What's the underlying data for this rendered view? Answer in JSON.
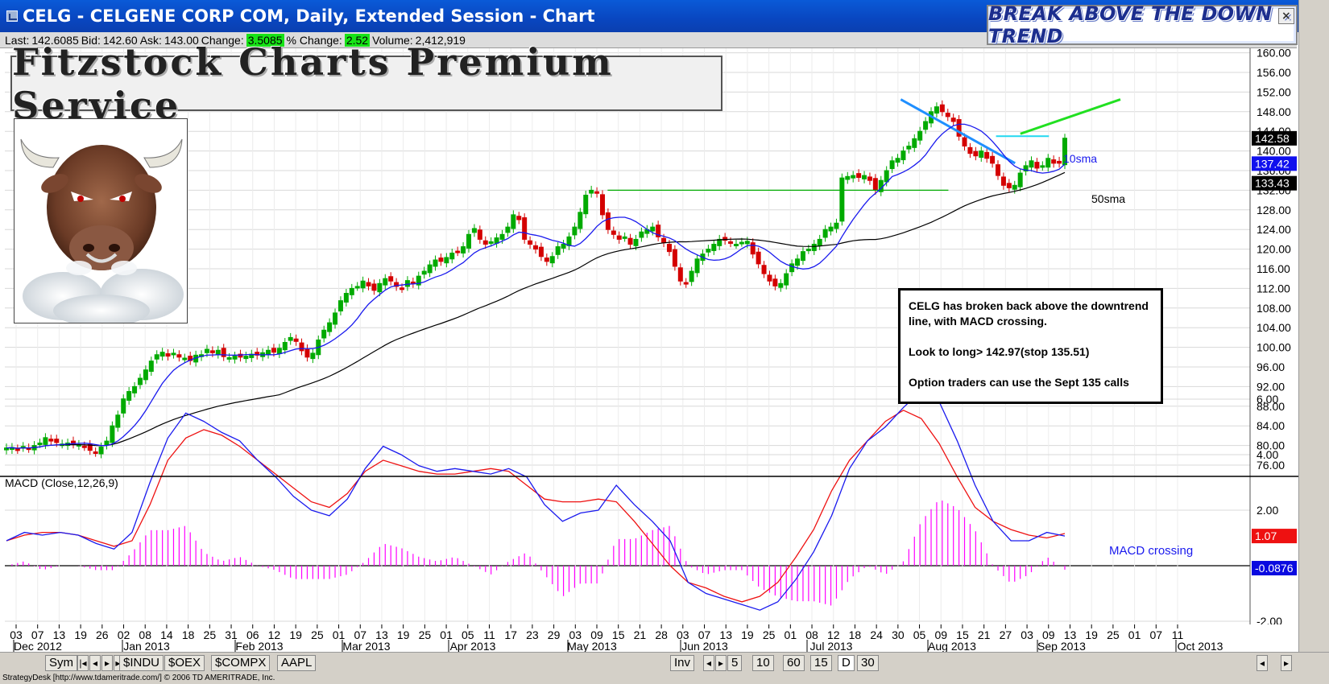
{
  "window": {
    "title": "CELG - CELGENE CORP COM, Daily, Extended Session - Chart",
    "banner_text": "BREAK ABOVE THE DOWN TREND",
    "banner_close": "×"
  },
  "quote": {
    "last_label": "Last:",
    "last": "142.6085",
    "bid_label": "Bid:",
    "bid": "142.60",
    "ask_label": "Ask:",
    "ask": "143.00",
    "change_label": "Change:",
    "change": "3.5085",
    "pct_label": "% Change:",
    "pct": "2.52",
    "volume_label": "Volume:",
    "volume": "2,412,919"
  },
  "logo_text": "Fitzstock Charts Premium Service",
  "annotation": {
    "line1": "CELG has broken back above the downtrend line, with MACD crossing.",
    "line2": "Look to long> 142.97(stop 135.51)",
    "line3": "Option traders can use the Sept 135 calls"
  },
  "labels": {
    "sma10": "10sma",
    "sma50": "50sma",
    "macd_title": "MACD (Close,12,26,9)",
    "macd_crossing": "MACD crossing"
  },
  "price_tags": [
    {
      "value": "142.58",
      "bg": "#000000",
      "fg": "#ffffff"
    },
    {
      "value": "137.42",
      "bg": "#1010ee",
      "fg": "#ffffff"
    },
    {
      "value": "133.43",
      "bg": "#000000",
      "fg": "#ffffff"
    }
  ],
  "macd_tags": [
    {
      "value": "1.07",
      "bg": "#ee1111",
      "fg": "#ffffff"
    },
    {
      "value": "-0.0876",
      "bg": "#0a0ae0",
      "fg": "#ffffff"
    }
  ],
  "bottom": {
    "sym": "Sym",
    "inv": "Inv",
    "symbols": [
      "$INDU",
      "$OEX",
      "$COMPX",
      "AAPL"
    ],
    "periods": [
      "5",
      "10",
      "60",
      "15",
      "D",
      "30"
    ],
    "arrows": [
      "|◂",
      "◂",
      "▸",
      "▸|"
    ]
  },
  "status": "StrategyDesk [http://www.tdameritrade.com/] © 2006 TD AMERITRADE, Inc.",
  "colors": {
    "candle_up": "#00aa00",
    "candle_down": "#d40000",
    "sma10": "#1a1aee",
    "sma50": "#000000",
    "downtrend": "#1f8fff",
    "breakout_target": "#21e021",
    "resistance": "#00aa00",
    "breakout_level": "#22d8f0",
    "macd_line": "#1a1aee",
    "signal_line": "#ee1111",
    "histogram": "#ff00ff"
  },
  "chart_data": [
    {
      "type": "candlestick",
      "title": "CELG - CELGENE CORP COM, Daily, Extended Session - Chart",
      "y_ticks": [
        76,
        80,
        84,
        88,
        92,
        96,
        100,
        104,
        108,
        112,
        116,
        120,
        124,
        128,
        132,
        136,
        140,
        144,
        148,
        152,
        156,
        160
      ],
      "ylim": [
        74,
        162
      ],
      "grid": true,
      "x_tick_labels": [
        "03",
        "07",
        "13",
        "19",
        "26",
        "02",
        "08",
        "14",
        "18",
        "25",
        "31",
        "06",
        "12",
        "19",
        "25",
        "01",
        "07",
        "13",
        "19",
        "25",
        "01",
        "05",
        "11",
        "17",
        "23",
        "29",
        "03",
        "09",
        "15",
        "21",
        "28",
        "03",
        "07",
        "13",
        "19",
        "25",
        "01",
        "08",
        "12",
        "18",
        "24",
        "30",
        "05",
        "09",
        "15",
        "21",
        "27",
        "03",
        "09",
        "13",
        "19",
        "25",
        "01",
        "07",
        "11"
      ],
      "month_labels": [
        "Dec 2012",
        "Jan 2013",
        "Feb 2013",
        "Mar 2013",
        "Apr 2013",
        "May 2013",
        "Jun 2013",
        "Jul 2013",
        "Aug 2013",
        "Sep 2013",
        "Oct 2013"
      ],
      "close_approx": [
        79.5,
        79.6,
        79.2,
        79.8,
        79.4,
        80.0,
        80.5,
        81.6,
        80.9,
        80.6,
        80.3,
        80.5,
        80.3,
        80.2,
        79.8,
        79.0,
        78.6,
        79.7,
        80.9,
        84.0,
        86.2,
        89.5,
        91.0,
        92.0,
        93.7,
        95.4,
        97.2,
        98.5,
        99.0,
        98.2,
        98.8,
        98.0,
        97.8,
        97.3,
        98.4,
        98.5,
        99.6,
        98.9,
        99.4,
        98.1,
        97.9,
        98.2,
        98.0,
        98.2,
        98.6,
        98.4,
        98.9,
        99.4,
        99.0,
        99.8,
        101.0,
        102.0,
        101.2,
        99.3,
        98.0,
        98.8,
        101.5,
        103.5,
        105.0,
        107.0,
        109.5,
        111.0,
        112.0,
        112.4,
        113.5,
        112.5,
        111.6,
        113.0,
        114.0,
        113.5,
        112.4,
        112.0,
        113.6,
        113.0,
        114.5,
        115.5,
        116.8,
        117.8,
        117.5,
        118.3,
        119.2,
        119.5,
        120.5,
        123.0,
        124.2,
        122.0,
        121.0,
        121.5,
        122.3,
        123.0,
        124.5,
        127.0,
        126.0,
        122.0,
        121.0,
        120.0,
        118.5,
        117.5,
        118.5,
        120.5,
        121.0,
        122.5,
        124.5,
        127.5,
        131.0,
        132.0,
        131.4,
        127.0,
        124.0,
        123.0,
        122.0,
        122.5,
        121.0,
        122.0,
        123.5,
        124.0,
        124.5,
        122.5,
        121.3,
        119.5,
        116.5,
        113.5,
        113.0,
        115.5,
        118.0,
        119.0,
        120.0,
        121.0,
        122.0,
        121.8,
        121.3,
        121.0,
        121.4,
        121.6,
        119.0,
        117.0,
        115.0,
        113.5,
        112.5,
        113.0,
        115.0,
        117.0,
        118.0,
        119.5,
        120.0,
        121.0,
        122.0,
        124.0,
        124.5,
        125.3,
        134.5,
        134.8,
        135.0,
        134.6,
        135.0,
        134.0,
        132.0,
        134.0,
        136.0,
        138.0,
        138.5,
        140.0,
        141.0,
        142.5,
        144.0,
        146.0,
        148.0,
        149.0,
        148.0,
        147.0,
        146.0,
        143.0,
        141.0,
        139.5,
        139.0,
        140.0,
        138.5,
        137.5,
        135.0,
        133.0,
        132.5,
        133.0,
        135.5,
        137.0,
        138.0,
        136.5,
        137.0,
        138.5,
        137.5,
        137.5,
        142.6
      ],
      "sma10_label": "10sma",
      "sma50_label": "50sma",
      "horizontal_lines": [
        {
          "label": "resistance",
          "value": 132.0
        },
        {
          "label": "breakout",
          "value": 143.0
        }
      ],
      "downtrend_line": {
        "from": {
          "date": "2013-08-05",
          "value": 150.5
        },
        "to": {
          "date": "2013-08-28",
          "value": 137.5
        }
      }
    },
    {
      "type": "line",
      "title": "MACD (Close,12,26,9)",
      "y_ticks": [
        -2,
        0,
        2,
        4,
        6
      ],
      "ylim": [
        -2.5,
        6.5
      ],
      "series": [
        {
          "name": "MACD",
          "values_approx": [
            0.9,
            1.2,
            1.1,
            1.2,
            1.1,
            0.8,
            0.6,
            1.2,
            3.0,
            4.6,
            5.5,
            5.2,
            4.8,
            4.5,
            3.8,
            3.2,
            2.5,
            2.0,
            1.8,
            2.4,
            3.5,
            4.3,
            4.0,
            3.6,
            3.4,
            3.5,
            3.4,
            3.3,
            3.5,
            3.2,
            2.2,
            1.6,
            1.9,
            2.0,
            2.9,
            2.2,
            1.6,
            0.9,
            -0.6,
            -1.0,
            -1.2,
            -1.4,
            -1.6,
            -1.3,
            -0.5,
            0.5,
            1.8,
            3.5,
            4.5,
            5.0,
            5.7,
            6.3,
            5.9,
            4.5,
            2.9,
            1.6,
            0.9,
            0.9,
            1.2,
            1.07
          ]
        },
        {
          "name": "Signal",
          "values_approx": [
            0.9,
            1.1,
            1.2,
            1.2,
            1.1,
            0.9,
            0.7,
            0.9,
            2.2,
            3.8,
            4.6,
            4.9,
            4.7,
            4.3,
            3.8,
            3.3,
            2.8,
            2.3,
            2.1,
            2.6,
            3.4,
            3.8,
            3.6,
            3.4,
            3.3,
            3.3,
            3.4,
            3.5,
            3.4,
            2.9,
            2.4,
            2.3,
            2.3,
            2.4,
            2.3,
            1.6,
            0.8,
            0.0,
            -0.6,
            -0.8,
            -1.1,
            -1.3,
            -1.1,
            -0.6,
            0.3,
            1.3,
            2.7,
            3.8,
            4.5,
            5.2,
            5.6,
            5.3,
            4.4,
            3.2,
            2.1,
            1.6,
            1.3,
            1.1,
            1.0,
            1.16
          ]
        }
      ],
      "histogram_label": "MACD - Signal",
      "annotation": "MACD crossing"
    }
  ]
}
